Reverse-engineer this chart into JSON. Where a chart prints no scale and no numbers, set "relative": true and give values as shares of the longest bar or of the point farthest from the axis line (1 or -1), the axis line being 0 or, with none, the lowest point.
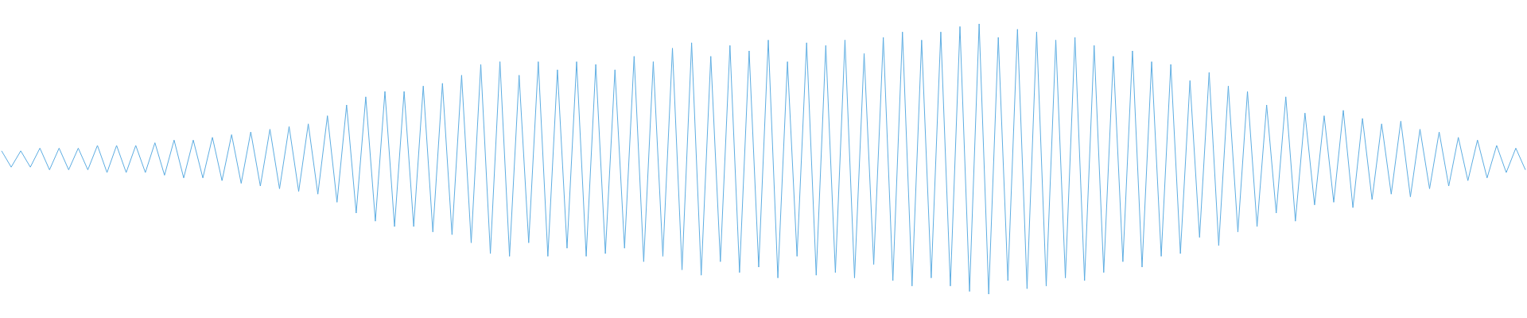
{
  "chart_data": {
    "type": "line",
    "relative": true,
    "tick_labels": false,
    "color": "#5dade2",
    "categories": [
      null,
      null,
      null,
      null,
      null,
      null,
      null,
      null,
      null,
      null,
      null,
      null,
      null,
      null,
      null,
      null,
      null,
      null,
      null,
      null,
      null,
      null,
      null,
      null,
      null,
      null,
      null,
      null,
      null,
      null,
      null,
      null,
      null,
      null,
      null,
      null,
      null,
      null,
      null,
      null,
      null,
      null,
      null,
      null,
      null,
      null,
      null,
      null,
      null,
      null,
      null,
      null,
      null,
      null,
      null,
      null,
      null,
      null,
      null,
      null,
      null,
      null,
      null,
      null,
      null,
      null,
      null,
      null,
      null,
      null,
      null,
      null,
      null,
      null,
      null,
      null,
      null,
      null,
      null,
      null,
      null,
      null,
      null,
      null,
      null,
      null,
      null,
      null,
      null,
      null,
      null,
      null,
      null,
      null,
      null,
      null,
      null,
      null,
      null,
      null,
      null,
      null,
      null,
      null,
      null,
      null,
      null,
      null,
      null,
      null,
      null,
      null,
      null,
      null,
      null,
      null,
      null,
      null,
      null,
      null,
      null,
      null,
      null,
      null,
      null,
      null,
      null,
      null,
      null,
      null,
      null,
      null,
      null,
      null,
      null,
      null,
      null,
      null,
      null,
      null,
      null,
      null,
      null,
      null,
      null,
      null,
      null,
      null,
      null,
      null,
      null,
      null,
      null,
      null,
      null,
      null,
      null,
      null,
      null,
      null
    ],
    "values": [
      0.53,
      0.47,
      0.53,
      0.47,
      0.54,
      0.46,
      0.54,
      0.46,
      0.54,
      0.46,
      0.55,
      0.45,
      0.55,
      0.45,
      0.55,
      0.45,
      0.56,
      0.44,
      0.57,
      0.43,
      0.57,
      0.43,
      0.58,
      0.42,
      0.59,
      0.41,
      0.6,
      0.4,
      0.61,
      0.39,
      0.62,
      0.38,
      0.63,
      0.37,
      0.66,
      0.34,
      0.7,
      0.3,
      0.73,
      0.27,
      0.75,
      0.25,
      0.75,
      0.25,
      0.77,
      0.23,
      0.78,
      0.22,
      0.81,
      0.19,
      0.85,
      0.15,
      0.86,
      0.14,
      0.81,
      0.19,
      0.86,
      0.14,
      0.83,
      0.17,
      0.86,
      0.14,
      0.85,
      0.15,
      0.83,
      0.17,
      0.88,
      0.12,
      0.86,
      0.14,
      0.91,
      0.09,
      0.93,
      0.07,
      0.88,
      0.12,
      0.92,
      0.08,
      0.9,
      0.1,
      0.94,
      0.06,
      0.86,
      0.14,
      0.93,
      0.07,
      0.92,
      0.08,
      0.94,
      0.06,
      0.89,
      0.11,
      0.95,
      0.05,
      0.97,
      0.03,
      0.94,
      0.06,
      0.97,
      0.03,
      0.99,
      0.01,
      1,
      0,
      0.95,
      0.05,
      0.98,
      0.02,
      0.97,
      0.03,
      0.94,
      0.06,
      0.95,
      0.05,
      0.92,
      0.08,
      0.88,
      0.12,
      0.9,
      0.1,
      0.86,
      0.14,
      0.85,
      0.15,
      0.79,
      0.21,
      0.82,
      0.18,
      0.77,
      0.23,
      0.75,
      0.25,
      0.7,
      0.3,
      0.73,
      0.27,
      0.67,
      0.33,
      0.66,
      0.34,
      0.68,
      0.32,
      0.65,
      0.35,
      0.63,
      0.37,
      0.64,
      0.36,
      0.61,
      0.39,
      0.6,
      0.4,
      0.58,
      0.42,
      0.57,
      0.43,
      0.55,
      0.45,
      0.54,
      0.46
    ]
  }
}
